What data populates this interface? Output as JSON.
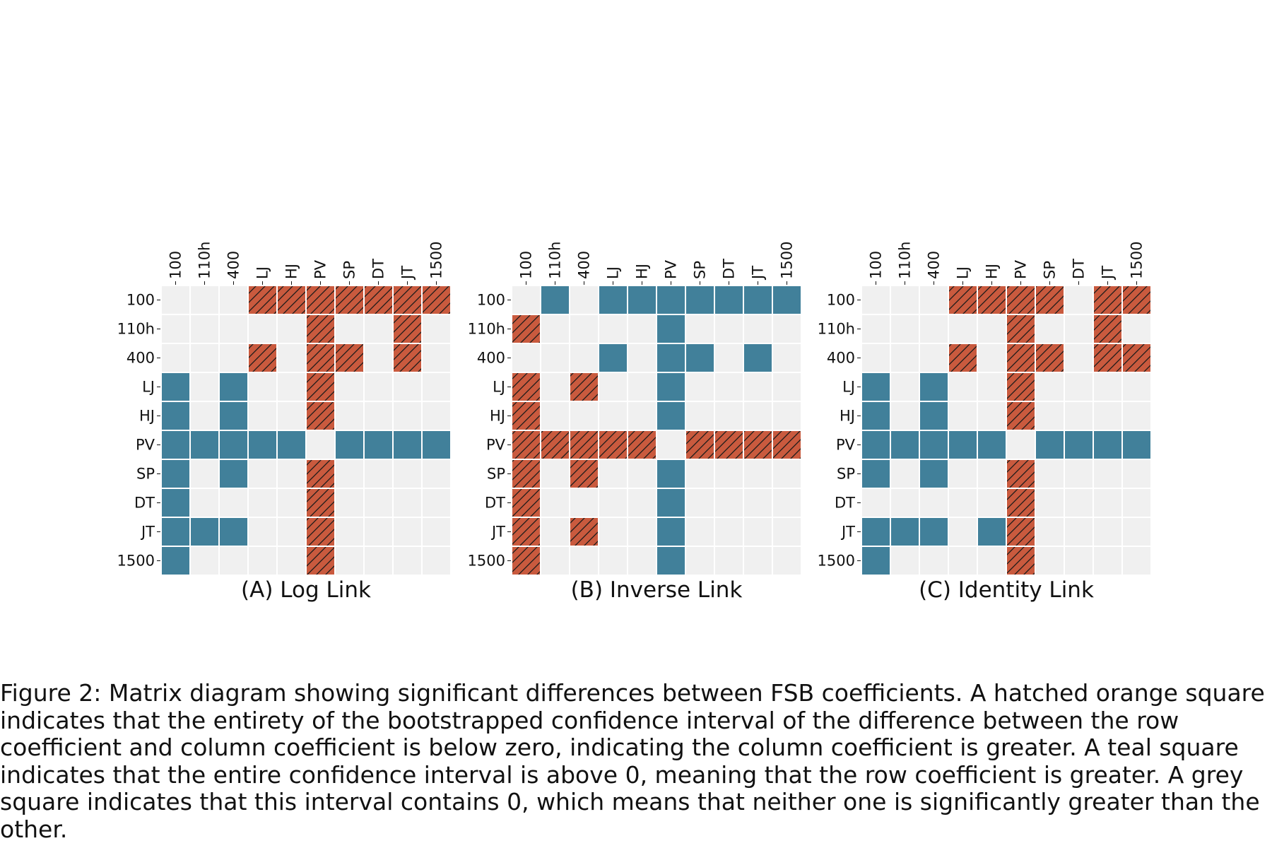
{
  "chart_data": [
    {
      "type": "heatmap",
      "title": "(A) Log Link",
      "labels": [
        "100",
        "110h",
        "400",
        "LJ",
        "HJ",
        "PV",
        "SP",
        "DT",
        "JT",
        "1500"
      ],
      "legend": {
        "-1": "hatched orange",
        "0": "grey",
        "1": "teal"
      },
      "matrix": [
        [
          0,
          0,
          0,
          -1,
          -1,
          -1,
          -1,
          -1,
          -1,
          -1
        ],
        [
          0,
          0,
          0,
          0,
          0,
          -1,
          0,
          0,
          -1,
          0
        ],
        [
          0,
          0,
          0,
          -1,
          0,
          -1,
          -1,
          0,
          -1,
          0
        ],
        [
          1,
          0,
          1,
          0,
          0,
          -1,
          0,
          0,
          0,
          0
        ],
        [
          1,
          0,
          1,
          0,
          0,
          -1,
          0,
          0,
          0,
          0
        ],
        [
          1,
          1,
          1,
          1,
          1,
          0,
          1,
          1,
          1,
          1
        ],
        [
          1,
          0,
          1,
          0,
          0,
          -1,
          0,
          0,
          0,
          0
        ],
        [
          1,
          0,
          0,
          0,
          0,
          -1,
          0,
          0,
          0,
          0
        ],
        [
          1,
          1,
          1,
          0,
          0,
          -1,
          0,
          0,
          0,
          0
        ],
        [
          1,
          0,
          0,
          0,
          0,
          -1,
          0,
          0,
          0,
          0
        ]
      ]
    },
    {
      "type": "heatmap",
      "title": "(B) Inverse Link",
      "labels": [
        "100",
        "110h",
        "400",
        "LJ",
        "HJ",
        "PV",
        "SP",
        "DT",
        "JT",
        "1500"
      ],
      "legend": {
        "-1": "hatched orange",
        "0": "grey",
        "1": "teal"
      },
      "matrix": [
        [
          0,
          1,
          0,
          1,
          1,
          1,
          1,
          1,
          1,
          1
        ],
        [
          -1,
          0,
          0,
          0,
          0,
          1,
          0,
          0,
          0,
          0
        ],
        [
          0,
          0,
          0,
          1,
          0,
          1,
          1,
          0,
          1,
          0
        ],
        [
          -1,
          0,
          -1,
          0,
          0,
          1,
          0,
          0,
          0,
          0
        ],
        [
          -1,
          0,
          0,
          0,
          0,
          1,
          0,
          0,
          0,
          0
        ],
        [
          -1,
          -1,
          -1,
          -1,
          -1,
          0,
          -1,
          -1,
          -1,
          -1
        ],
        [
          -1,
          0,
          -1,
          0,
          0,
          1,
          0,
          0,
          0,
          0
        ],
        [
          -1,
          0,
          0,
          0,
          0,
          1,
          0,
          0,
          0,
          0
        ],
        [
          -1,
          0,
          -1,
          0,
          0,
          1,
          0,
          0,
          0,
          0
        ],
        [
          -1,
          0,
          0,
          0,
          0,
          1,
          0,
          0,
          0,
          0
        ]
      ]
    },
    {
      "type": "heatmap",
      "title": "(C) Identity Link",
      "labels": [
        "100",
        "110h",
        "400",
        "LJ",
        "HJ",
        "PV",
        "SP",
        "DT",
        "JT",
        "1500"
      ],
      "legend": {
        "-1": "hatched orange",
        "0": "grey",
        "1": "teal"
      },
      "matrix": [
        [
          0,
          0,
          0,
          -1,
          -1,
          -1,
          -1,
          0,
          -1,
          -1
        ],
        [
          0,
          0,
          0,
          0,
          0,
          -1,
          0,
          0,
          -1,
          0
        ],
        [
          0,
          0,
          0,
          -1,
          0,
          -1,
          -1,
          0,
          -1,
          -1
        ],
        [
          1,
          0,
          1,
          0,
          0,
          -1,
          0,
          0,
          0,
          0
        ],
        [
          1,
          0,
          1,
          0,
          0,
          -1,
          0,
          0,
          0,
          0
        ],
        [
          1,
          1,
          1,
          1,
          1,
          0,
          1,
          1,
          1,
          1
        ],
        [
          1,
          0,
          1,
          0,
          0,
          -1,
          0,
          0,
          0,
          0
        ],
        [
          0,
          0,
          0,
          0,
          0,
          -1,
          0,
          0,
          0,
          0
        ],
        [
          1,
          1,
          1,
          0,
          1,
          -1,
          0,
          0,
          0,
          0
        ],
        [
          1,
          0,
          0,
          0,
          0,
          -1,
          0,
          0,
          0,
          0
        ]
      ]
    }
  ],
  "colors": {
    "teal": "#41809A",
    "orange": "#C95A3E",
    "grey": "#F0F0F0",
    "hatch": "#1a1a1a",
    "text": "#111111"
  },
  "caption": "Figure 2: Matrix diagram showing significant differences between FSB coefficients. A hatched orange square indicates that the entirety of the bootstrapped confidence interval of the difference between the row coefficient and column coefficient is below zero, indicating the column coefficient is greater. A teal square indicates that the entire confidence interval is above 0, meaning that the row coefficient is greater. A grey square indicates that this interval contains 0, which means that neither one is significantly greater than the other."
}
